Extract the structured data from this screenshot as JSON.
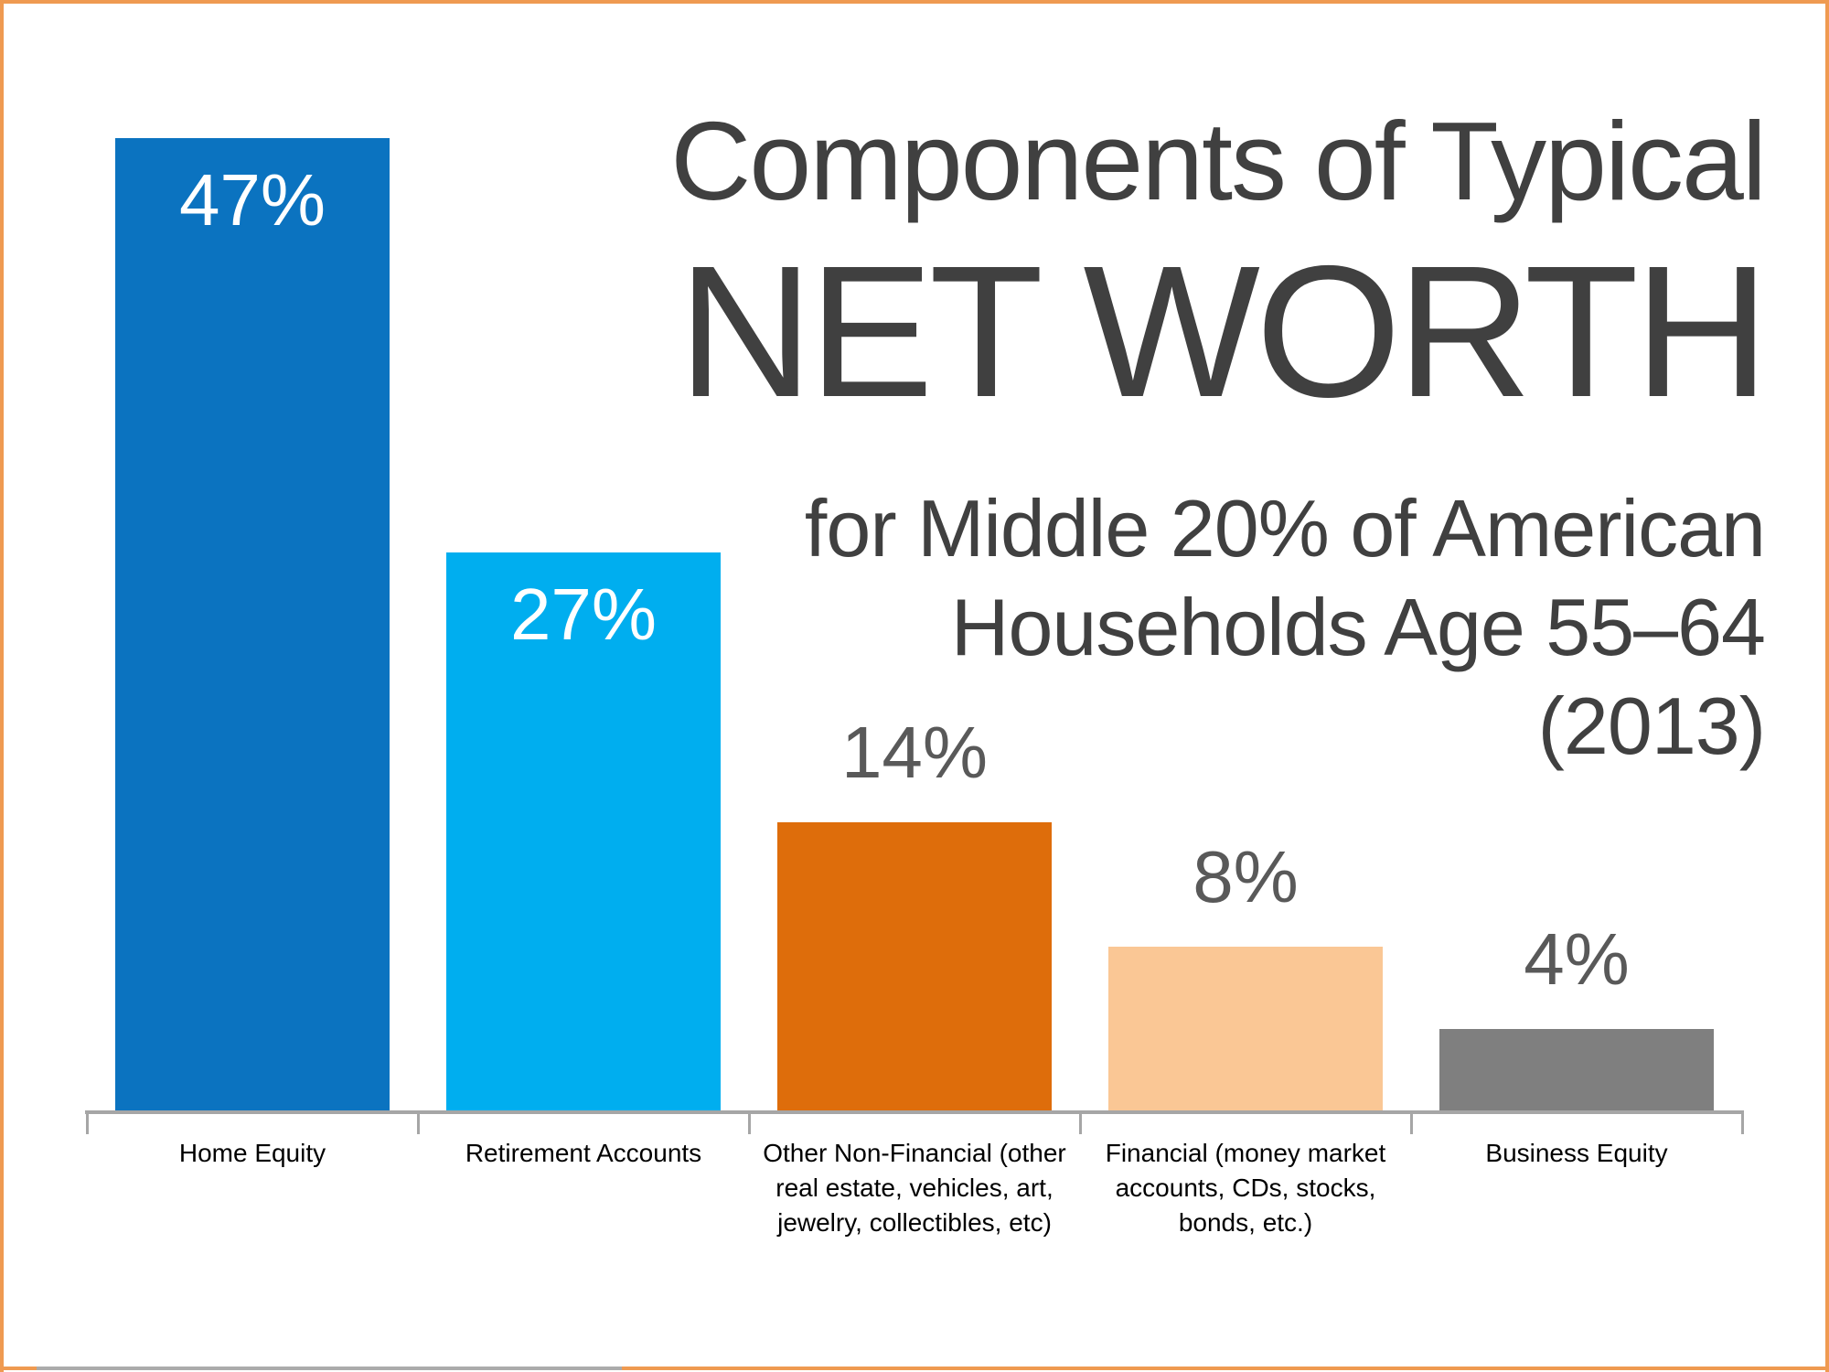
{
  "frame": {
    "border_color": "#EF9A51",
    "bottom_gray_segment_color": "#ABABAB"
  },
  "chart_data": {
    "type": "bar",
    "title": "Components of Typical",
    "title_emphasis": "NET WORTH",
    "subtitle": "for Middle 20% of American\nHouseholds Age 55–64\n(2013)",
    "categories": [
      "Home Equity",
      "Retirement Accounts",
      "Other Non-Financial (other\nreal estate, vehicles, art,\njewelry, collectibles, etc)",
      "Financial (money market\naccounts, CDs, stocks,\nbonds, etc.)",
      "Business Equity"
    ],
    "values": [
      47,
      27,
      14,
      8,
      4
    ],
    "bars": [
      {
        "category": "Home Equity",
        "value": 47,
        "label": "47%",
        "color": "#0B73C0",
        "label_position": "inside",
        "label_color": "#FFFFFF"
      },
      {
        "category": "Retirement Accounts",
        "value": 27,
        "label": "27%",
        "color": "#00AEEF",
        "label_position": "inside",
        "label_color": "#FFFFFF"
      },
      {
        "category": "Other Non-Financial (other\nreal estate, vehicles, art,\njewelry, collectibles, etc)",
        "value": 14,
        "label": "14%",
        "color": "#DE6D0B",
        "label_position": "above",
        "label_color": "#595959"
      },
      {
        "category": "Financial (money market\naccounts, CDs, stocks,\nbonds, etc.)",
        "value": 8,
        "label": "8%",
        "color": "#FAC795",
        "label_position": "above",
        "label_color": "#595959"
      },
      {
        "category": "Business Equity",
        "value": 4,
        "label": "4%",
        "color": "#7F7F7F",
        "label_position": "above",
        "label_color": "#595959"
      }
    ],
    "title_color": "#404040",
    "axis_color": "#A6A6A6",
    "xlabel": "",
    "ylabel": "",
    "ylim": [
      0,
      50
    ],
    "grid": false,
    "legend": false
  }
}
